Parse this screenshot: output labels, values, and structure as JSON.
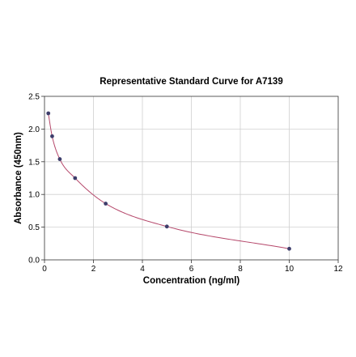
{
  "chart_data": {
    "type": "scatter",
    "title": "Representative Standard Curve for A7139",
    "xlabel": "Concentration (ng/ml)",
    "ylabel": "Absorbance (450nm)",
    "xlim": [
      0,
      12
    ],
    "ylim": [
      0,
      2.5
    ],
    "xticks": [
      0,
      2,
      4,
      6,
      8,
      10,
      12
    ],
    "yticks": [
      0.0,
      0.5,
      1.0,
      1.5,
      2.0,
      2.5
    ],
    "xtick_labels": [
      "0",
      "2",
      "4",
      "6",
      "8",
      "10",
      "12"
    ],
    "ytick_labels": [
      "0.0",
      "0.5",
      "1.0",
      "1.5",
      "2.0",
      "2.5"
    ],
    "grid": true,
    "series": [
      {
        "x": [
          0.156,
          0.312,
          0.625,
          1.25,
          2.5,
          5,
          10
        ],
        "y": [
          2.24,
          1.89,
          1.54,
          1.25,
          0.86,
          0.51,
          0.17
        ],
        "marker_color": "#3d3d6b",
        "fit_curve": true,
        "curve_color": "#b5476a"
      }
    ]
  }
}
